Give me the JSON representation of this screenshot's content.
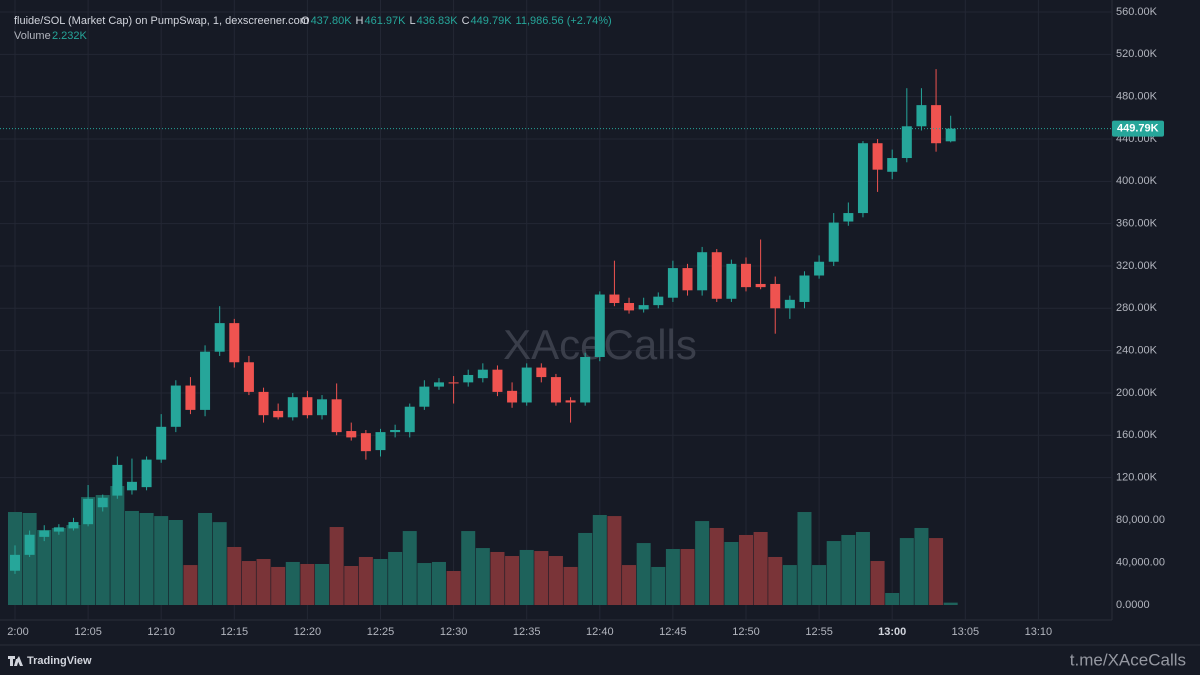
{
  "chart_data": {
    "type": "candlestick",
    "title": "fluide/SOL (Market Cap) on PumpSwap, 1, dexscreener.com",
    "ohlc_legend": [
      {
        "label": "O",
        "value": "437.80K"
      },
      {
        "label": "H",
        "value": "461.97K"
      },
      {
        "label": "L",
        "value": "436.83K"
      },
      {
        "label": "C",
        "value": "449.79K"
      }
    ],
    "change": "11,986.56 (+2.74%)",
    "volume_label": "Volume",
    "volume_value": "2.232K",
    "watermark": "XAceCalls",
    "footer_left": "TradingView",
    "footer_right": "t.me/XAceCalls",
    "up_color": "#26a69a",
    "down_color": "#ef5350",
    "volume_up_color": "#1e625b",
    "volume_down_color": "#7a3438",
    "grid": true,
    "open": [
      32000,
      47000,
      64000,
      69000,
      72000,
      76000,
      92000,
      103000,
      108000,
      111000,
      137000,
      168000,
      207000,
      184000,
      239000,
      266000,
      229000,
      201000,
      183000,
      177000,
      196000,
      179000,
      194000,
      164000,
      162000,
      146000,
      163000,
      163000,
      187000,
      206000,
      210000,
      210000,
      214000,
      222000,
      202000,
      191000,
      224000,
      215000,
      193000,
      191000,
      234000,
      293000,
      285000,
      279000,
      283000,
      290000,
      318000,
      297000,
      333000,
      289000,
      322000,
      303000,
      303000,
      280000,
      286000,
      311000,
      324000,
      362000,
      370000,
      436000,
      409000,
      422000,
      452000,
      472000,
      437800
    ],
    "high": [
      56000,
      70000,
      75000,
      76000,
      82000,
      113000,
      104000,
      140000,
      138000,
      140000,
      180000,
      212000,
      215000,
      245000,
      282000,
      270000,
      235000,
      205000,
      190000,
      200000,
      202000,
      198000,
      209000,
      172000,
      165000,
      166000,
      170000,
      190000,
      212000,
      214000,
      216000,
      222000,
      228000,
      226000,
      210000,
      228000,
      228000,
      218000,
      196000,
      238000,
      296000,
      325000,
      290000,
      290000,
      295000,
      325000,
      322000,
      338000,
      336000,
      326000,
      328000,
      345000,
      310000,
      292000,
      315000,
      330000,
      370000,
      380000,
      438000,
      440000,
      430000,
      488000,
      488000,
      506000,
      461970
    ],
    "low": [
      29000,
      45000,
      60000,
      66000,
      70000,
      74000,
      88000,
      100000,
      104000,
      108000,
      134000,
      163000,
      180000,
      178000,
      235000,
      224000,
      198000,
      172000,
      175000,
      174000,
      176000,
      175000,
      160000,
      155000,
      137000,
      140000,
      158000,
      158000,
      184000,
      203000,
      190000,
      206000,
      210000,
      197000,
      186000,
      188000,
      210000,
      188000,
      172000,
      188000,
      230000,
      282000,
      275000,
      276000,
      280000,
      286000,
      292000,
      292000,
      286000,
      286000,
      296000,
      298000,
      256000,
      270000,
      280000,
      308000,
      320000,
      358000,
      366000,
      390000,
      402000,
      418000,
      448000,
      428000,
      436830
    ],
    "close": [
      47000,
      66000,
      70000,
      73000,
      78000,
      100000,
      101000,
      132000,
      116000,
      137000,
      168000,
      207000,
      184000,
      239000,
      266000,
      229000,
      201000,
      179000,
      177000,
      196000,
      179000,
      194000,
      163000,
      158000,
      145000,
      163000,
      165000,
      187000,
      206000,
      210000,
      209000,
      217000,
      222000,
      201000,
      191000,
      224000,
      215000,
      191000,
      191000,
      234000,
      293000,
      285000,
      278000,
      283000,
      291000,
      318000,
      297000,
      333000,
      289000,
      322000,
      300000,
      300000,
      280000,
      288000,
      311000,
      324000,
      361000,
      370000,
      436000,
      411000,
      422000,
      452000,
      472000,
      436000,
      449790
    ],
    "volume": [
      87500,
      86600,
      70600,
      72500,
      75300,
      101600,
      103500,
      112000,
      88500,
      86600,
      83700,
      80000,
      37600,
      86600,
      78000,
      54600,
      41400,
      43300,
      35800,
      40500,
      38600,
      38600,
      73400,
      36700,
      45200,
      43300,
      49900,
      69600,
      39500,
      40500,
      32000,
      69600,
      53600,
      49900,
      46100,
      51800,
      50800,
      46100,
      35800,
      67800,
      84700,
      83700,
      37600,
      58300,
      35800,
      52700,
      52700,
      79000,
      72500,
      59300,
      65900,
      68700,
      45200,
      37600,
      87500,
      37600,
      60200,
      65900,
      68700,
      41400,
      11300,
      63000,
      72500,
      63000,
      2232
    ],
    "last_price": {
      "value": 449790,
      "label": "449.79K"
    },
    "ylim": [
      0,
      560000
    ],
    "yticks": [
      {
        "value": 120000,
        "label": "120.00K"
      },
      {
        "value": 160000,
        "label": "160.00K"
      },
      {
        "value": 200000,
        "label": "200.00K"
      },
      {
        "value": 240000,
        "label": "240.00K"
      },
      {
        "value": 280000,
        "label": "280.00K"
      },
      {
        "value": 320000,
        "label": "320.00K"
      },
      {
        "value": 360000,
        "label": "360.00K"
      },
      {
        "value": 400000,
        "label": "400.00K"
      },
      {
        "value": 440000,
        "label": "440.00K"
      },
      {
        "value": 480000,
        "label": "480.00K"
      },
      {
        "value": 520000,
        "label": "520.00K"
      },
      {
        "value": 560000,
        "label": "560.00K"
      }
    ],
    "volume_lim": [
      0,
      80000
    ],
    "volume_ticks": [
      {
        "value": 0,
        "label": "0.0000"
      },
      {
        "value": 40000,
        "label": "40,000.00"
      },
      {
        "value": 80000,
        "label": "80,000.00"
      }
    ],
    "xtick_labels": [
      "2:00",
      "12:05",
      "12:10",
      "12:15",
      "12:20",
      "12:25",
      "12:30",
      "12:35",
      "12:40",
      "12:45",
      "12:50",
      "12:55",
      "13:00",
      "13:05",
      "13:10"
    ]
  }
}
